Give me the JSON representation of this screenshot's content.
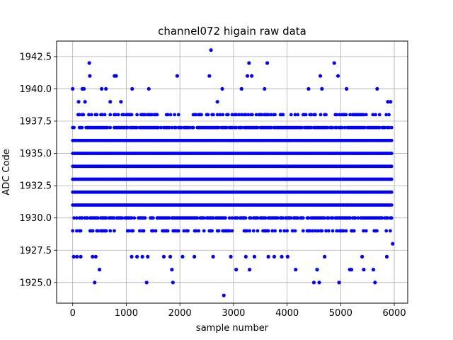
{
  "chart_data": {
    "type": "scatter",
    "title": "channel072 higain raw data",
    "xlabel": "sample number",
    "ylabel": "ADC Code",
    "xlim": [
      -300,
      6250
    ],
    "ylim": [
      1923.4,
      1943.7
    ],
    "xticks": [
      0,
      1000,
      2000,
      3000,
      4000,
      5000,
      6000
    ],
    "xtick_labels": [
      "0",
      "1000",
      "2000",
      "3000",
      "4000",
      "5000",
      "6000"
    ],
    "yticks": [
      1925.0,
      1927.5,
      1930.0,
      1932.5,
      1935.0,
      1937.5,
      1940.0,
      1942.5
    ],
    "ytick_labels": [
      "1925.0",
      "1927.5",
      "1930.0",
      "1932.5",
      "1935.0",
      "1937.5",
      "1940.0",
      "1942.5"
    ],
    "grid": true,
    "marker_color": "#0000ff",
    "n_samples": 5950,
    "dense_levels": [
      1929,
      1930,
      1931,
      1932,
      1933,
      1934,
      1935,
      1936,
      1937,
      1938
    ],
    "outliers": [
      {
        "x": 0,
        "y": 1940
      },
      {
        "x": 20,
        "y": 1927
      },
      {
        "x": 80,
        "y": 1927
      },
      {
        "x": 110,
        "y": 1939
      },
      {
        "x": 150,
        "y": 1927
      },
      {
        "x": 180,
        "y": 1940
      },
      {
        "x": 210,
        "y": 1940
      },
      {
        "x": 230,
        "y": 1939
      },
      {
        "x": 310,
        "y": 1942
      },
      {
        "x": 320,
        "y": 1941
      },
      {
        "x": 370,
        "y": 1927
      },
      {
        "x": 410,
        "y": 1925
      },
      {
        "x": 430,
        "y": 1927
      },
      {
        "x": 500,
        "y": 1926
      },
      {
        "x": 540,
        "y": 1940
      },
      {
        "x": 620,
        "y": 1940
      },
      {
        "x": 700,
        "y": 1939
      },
      {
        "x": 780,
        "y": 1941
      },
      {
        "x": 810,
        "y": 1941
      },
      {
        "x": 900,
        "y": 1939
      },
      {
        "x": 1100,
        "y": 1927
      },
      {
        "x": 1110,
        "y": 1940
      },
      {
        "x": 1200,
        "y": 1927
      },
      {
        "x": 1300,
        "y": 1927
      },
      {
        "x": 1380,
        "y": 1925
      },
      {
        "x": 1400,
        "y": 1927
      },
      {
        "x": 1420,
        "y": 1940
      },
      {
        "x": 1700,
        "y": 1927
      },
      {
        "x": 1820,
        "y": 1927
      },
      {
        "x": 1850,
        "y": 1926
      },
      {
        "x": 1870,
        "y": 1925
      },
      {
        "x": 1950,
        "y": 1941
      },
      {
        "x": 2050,
        "y": 1927
      },
      {
        "x": 2270,
        "y": 1927
      },
      {
        "x": 2550,
        "y": 1941
      },
      {
        "x": 2580,
        "y": 1943
      },
      {
        "x": 2620,
        "y": 1927
      },
      {
        "x": 2700,
        "y": 1939
      },
      {
        "x": 2790,
        "y": 1940
      },
      {
        "x": 2820,
        "y": 1924
      },
      {
        "x": 2950,
        "y": 1927
      },
      {
        "x": 3050,
        "y": 1926
      },
      {
        "x": 3150,
        "y": 1940
      },
      {
        "x": 3230,
        "y": 1927
      },
      {
        "x": 3260,
        "y": 1941
      },
      {
        "x": 3290,
        "y": 1942
      },
      {
        "x": 3300,
        "y": 1926
      },
      {
        "x": 3340,
        "y": 1941
      },
      {
        "x": 3390,
        "y": 1927
      },
      {
        "x": 3580,
        "y": 1940
      },
      {
        "x": 3630,
        "y": 1942
      },
      {
        "x": 3650,
        "y": 1927
      },
      {
        "x": 3760,
        "y": 1927
      },
      {
        "x": 3900,
        "y": 1927
      },
      {
        "x": 4010,
        "y": 1927
      },
      {
        "x": 4160,
        "y": 1926
      },
      {
        "x": 4400,
        "y": 1940
      },
      {
        "x": 4500,
        "y": 1925
      },
      {
        "x": 4560,
        "y": 1926
      },
      {
        "x": 4600,
        "y": 1925
      },
      {
        "x": 4620,
        "y": 1941
      },
      {
        "x": 4650,
        "y": 1940
      },
      {
        "x": 4700,
        "y": 1927
      },
      {
        "x": 4880,
        "y": 1942
      },
      {
        "x": 4950,
        "y": 1941
      },
      {
        "x": 4970,
        "y": 1925
      },
      {
        "x": 5110,
        "y": 1940
      },
      {
        "x": 5170,
        "y": 1926
      },
      {
        "x": 5200,
        "y": 1926
      },
      {
        "x": 5400,
        "y": 1927
      },
      {
        "x": 5430,
        "y": 1926
      },
      {
        "x": 5610,
        "y": 1926
      },
      {
        "x": 5640,
        "y": 1925
      },
      {
        "x": 5680,
        "y": 1940
      },
      {
        "x": 5860,
        "y": 1927
      },
      {
        "x": 5880,
        "y": 1939
      },
      {
        "x": 5930,
        "y": 1939
      },
      {
        "x": 5970,
        "y": 1928
      }
    ]
  }
}
